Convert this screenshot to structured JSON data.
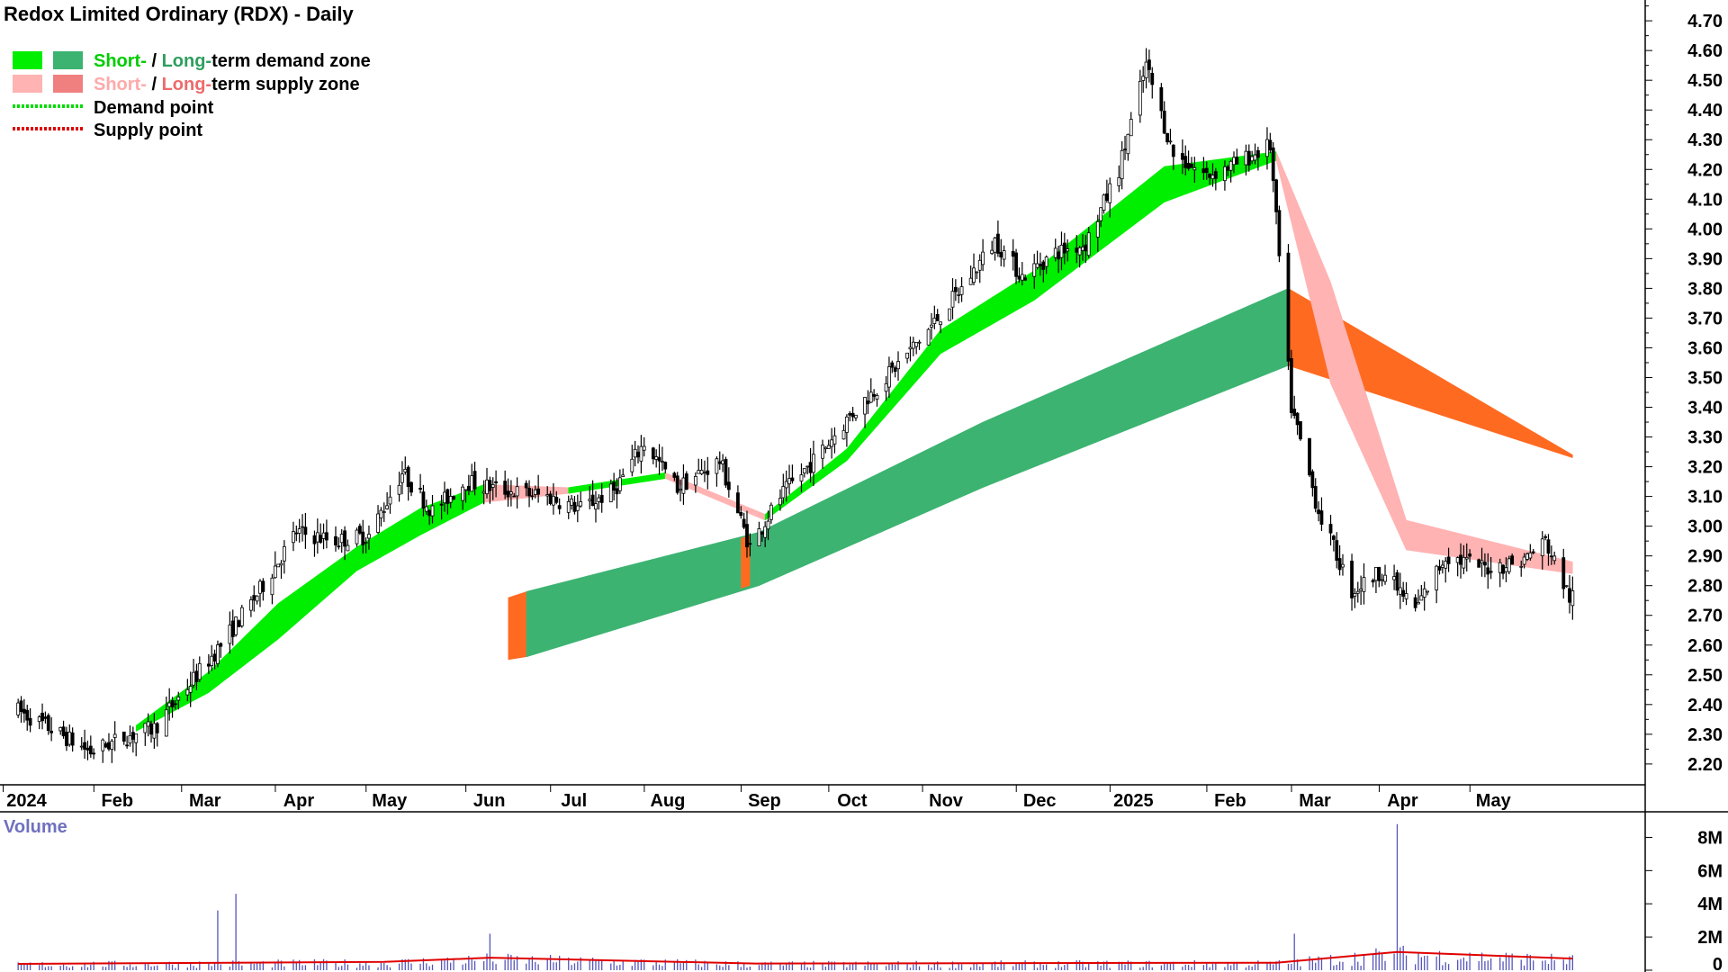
{
  "chart_data": [
    {
      "type": "candlestick",
      "title": "Redox Limited Ordinary (RDX) - Daily",
      "legend": [
        {
          "label_short": "Short-",
          "sep": " / ",
          "label_long": "Long-",
          "rest": "term demand zone",
          "short_color": "#00ee00",
          "long_color": "#3cb371",
          "short_text_color": "#00cc00",
          "long_text_color": "#2e9e5e"
        },
        {
          "label_short": "Short-",
          "sep": " / ",
          "label_long": "Long-",
          "rest": "term supply zone",
          "short_color": "#ffb3b3",
          "long_color": "#f08080",
          "short_text_color": "#ffaaaa",
          "long_text_color": "#ee6b6b"
        },
        {
          "label": "Demand point",
          "line_color": "#00dd00"
        },
        {
          "label": "Supply point",
          "line_color": "#dd0000"
        }
      ],
      "x_tick_labels": [
        "2024",
        "Feb",
        "Mar",
        "Apr",
        "May",
        "Jun",
        "Jul",
        "Aug",
        "Sep",
        "Oct",
        "Nov",
        "Dec",
        "2025",
        "Feb",
        "Mar",
        "Apr",
        "May"
      ],
      "y_tick_labels": [
        "2.20",
        "2.30",
        "2.40",
        "2.50",
        "2.60",
        "2.70",
        "2.80",
        "2.90",
        "3.00",
        "3.10",
        "3.20",
        "3.30",
        "3.40",
        "3.50",
        "3.60",
        "3.70",
        "3.80",
        "3.90",
        "4.00",
        "4.10",
        "4.20",
        "4.30",
        "4.40",
        "4.50",
        "4.60",
        "4.70"
      ],
      "ylim": [
        2.13,
        4.77
      ],
      "price_close": [
        [
          "2024-01-01",
          2.38
        ],
        [
          "2024-01-15",
          2.3
        ],
        [
          "2024-01-25",
          2.24
        ],
        [
          "2024-02-05",
          2.29
        ],
        [
          "2024-02-15",
          2.32
        ],
        [
          "2024-02-26",
          2.46
        ],
        [
          "2024-03-08",
          2.6
        ],
        [
          "2024-03-20",
          2.77
        ],
        [
          "2024-04-02",
          2.98
        ],
        [
          "2024-04-15",
          2.95
        ],
        [
          "2024-04-26",
          2.97
        ],
        [
          "2024-05-07",
          3.18
        ],
        [
          "2024-05-17",
          3.05
        ],
        [
          "2024-05-28",
          3.15
        ],
        [
          "2024-06-10",
          3.12
        ],
        [
          "2024-06-24",
          3.1
        ],
        [
          "2024-07-05",
          3.06
        ],
        [
          "2024-07-16",
          3.12
        ],
        [
          "2024-07-26",
          3.28
        ],
        [
          "2024-08-06",
          3.13
        ],
        [
          "2024-08-20",
          3.22
        ],
        [
          "2024-08-30",
          2.93
        ],
        [
          "2024-09-09",
          3.1
        ],
        [
          "2024-09-20",
          3.22
        ],
        [
          "2024-10-02",
          3.37
        ],
        [
          "2024-10-14",
          3.5
        ],
        [
          "2024-10-28",
          3.66
        ],
        [
          "2024-11-08",
          3.8
        ],
        [
          "2024-11-19",
          3.96
        ],
        [
          "2024-11-28",
          3.84
        ],
        [
          "2024-12-09",
          3.92
        ],
        [
          "2024-12-19",
          3.95
        ],
        [
          "2024-12-30",
          4.2
        ],
        [
          "2025-01-08",
          4.55
        ],
        [
          "2025-01-17",
          4.25
        ],
        [
          "2025-01-28",
          4.18
        ],
        [
          "2025-02-07",
          4.22
        ],
        [
          "2025-02-18",
          4.28
        ],
        [
          "2025-02-25",
          3.4
        ],
        [
          "2025-03-06",
          3.05
        ],
        [
          "2025-03-17",
          2.78
        ],
        [
          "2025-03-27",
          2.85
        ],
        [
          "2025-04-07",
          2.72
        ],
        [
          "2025-04-17",
          2.9
        ],
        [
          "2025-04-30",
          2.86
        ],
        [
          "2025-05-12",
          2.88
        ],
        [
          "2025-05-20",
          2.95
        ],
        [
          "2025-05-28",
          2.76
        ]
      ],
      "short_term_zone": [
        [
          "2024-02-09",
          2.31,
          2.33,
          "supply"
        ],
        [
          "2024-03-04",
          2.44,
          2.51,
          "demand"
        ],
        [
          "2024-03-27",
          2.62,
          2.74,
          "demand"
        ],
        [
          "2024-04-22",
          2.85,
          2.93,
          "demand"
        ],
        [
          "2024-05-13",
          2.97,
          3.06,
          "demand"
        ],
        [
          "2024-06-03",
          3.08,
          3.14,
          "demand"
        ],
        [
          "2024-07-01",
          3.11,
          3.13,
          "supply"
        ],
        [
          "2024-08-02",
          3.16,
          3.18,
          "demand"
        ],
        [
          "2024-09-04",
          3.02,
          3.04,
          "supply"
        ],
        [
          "2024-10-01",
          3.22,
          3.26,
          "demand"
        ],
        [
          "2024-11-01",
          3.58,
          3.66,
          "demand"
        ],
        [
          "2024-12-02",
          3.76,
          3.86,
          "demand"
        ],
        [
          "2025-01-14",
          4.09,
          4.21,
          "demand"
        ],
        [
          "2025-02-20",
          4.23,
          4.26,
          "demand"
        ],
        [
          "2025-03-10",
          3.48,
          3.82,
          "supply"
        ],
        [
          "2025-04-04",
          2.92,
          3.02,
          "supply"
        ],
        [
          "2025-05-29",
          2.84,
          2.88,
          "supply"
        ]
      ],
      "long_term_zone": [
        [
          "2024-06-17",
          2.56,
          2.78,
          "demand"
        ],
        [
          "2024-09-02",
          2.8,
          2.98,
          "demand"
        ],
        [
          "2024-11-15",
          3.13,
          3.35,
          "demand"
        ],
        [
          "2025-02-24",
          3.54,
          3.8,
          "demand"
        ],
        [
          "2025-05-29",
          3.23,
          3.24,
          "supply"
        ]
      ]
    },
    {
      "type": "bar",
      "title": "Volume",
      "y_tick_labels": [
        "0",
        "2M",
        "4M",
        "6M",
        "8M"
      ],
      "ylim": [
        0,
        9000000
      ],
      "volume_peaks": [
        [
          "2024-03-07",
          3600000
        ],
        [
          "2024-03-13",
          4600000
        ],
        [
          "2024-06-05",
          2200000
        ],
        [
          "2025-02-26",
          2200000
        ],
        [
          "2025-04-01",
          8800000
        ]
      ],
      "volume_average": [
        [
          "2024-01-01",
          380000
        ],
        [
          "2024-05-01",
          500000
        ],
        [
          "2024-06-05",
          750000
        ],
        [
          "2024-09-01",
          400000
        ],
        [
          "2025-02-20",
          450000
        ],
        [
          "2025-04-01",
          1100000
        ],
        [
          "2025-05-29",
          700000
        ]
      ]
    }
  ]
}
